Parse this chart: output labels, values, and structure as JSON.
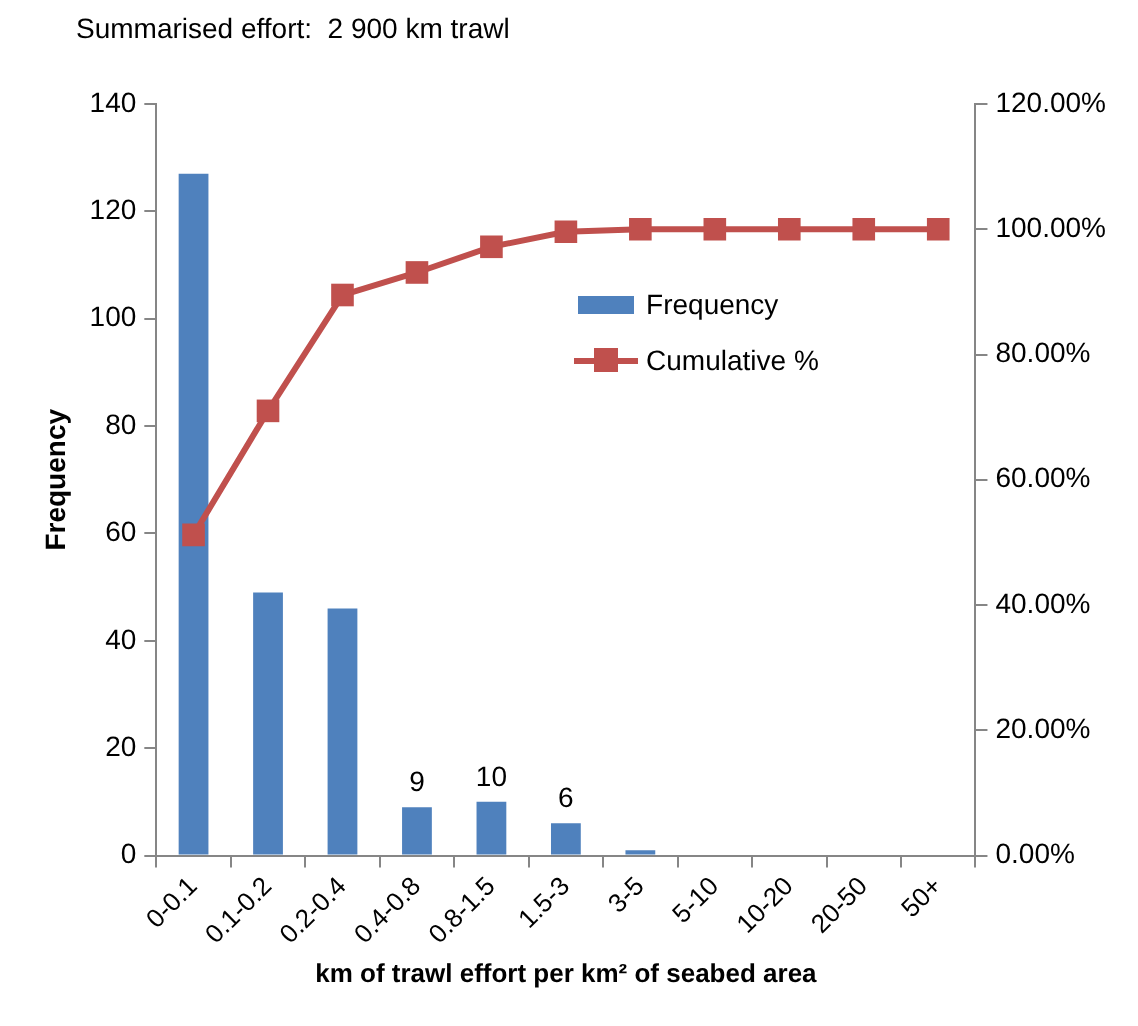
{
  "chart_data": {
    "type": "bar",
    "title": "Summarised effort:  2 900 km trawl",
    "xlabel": "km of trawl effort per km² of seabed area",
    "ylabel": "Frequency",
    "categories": [
      "0-0.1",
      "0.1-0.2",
      "0.2-0.4",
      "0.4-0.8",
      "0.8-1.5",
      "1.5-3",
      "3-5",
      "5-10",
      "10-20",
      "20-50",
      "50+"
    ],
    "series": [
      {
        "name": "Frequency",
        "color": "#4f81bd",
        "values": [
          127,
          49,
          46,
          9,
          10,
          6,
          1,
          0,
          0,
          0,
          0
        ],
        "value_labels": [
          null,
          null,
          null,
          "9",
          "10",
          "6",
          null,
          null,
          null,
          null,
          null
        ]
      },
      {
        "name": "Cumulative %",
        "type": "line",
        "axis": "y2",
        "color": "#c0504d",
        "values": [
          51.2,
          71.0,
          89.5,
          93.1,
          97.2,
          99.6,
          100,
          100,
          100,
          100,
          100
        ]
      }
    ],
    "ylim": [
      0,
      140
    ],
    "yticks": [
      0,
      20,
      40,
      60,
      80,
      100,
      120,
      140
    ],
    "y2lim": [
      0,
      120
    ],
    "y2ticks": [
      {
        "value": 0,
        "label": "0.00%"
      },
      {
        "value": 20,
        "label": "20.00%"
      },
      {
        "value": 40,
        "label": "40.00%"
      },
      {
        "value": 60,
        "label": "60.00%"
      },
      {
        "value": 80,
        "label": "80.00%"
      },
      {
        "value": 100,
        "label": "100.00%"
      },
      {
        "value": 120,
        "label": "120.00%"
      }
    ],
    "grid": false,
    "legend": "top right",
    "marker": "square",
    "line_style": "solid"
  }
}
